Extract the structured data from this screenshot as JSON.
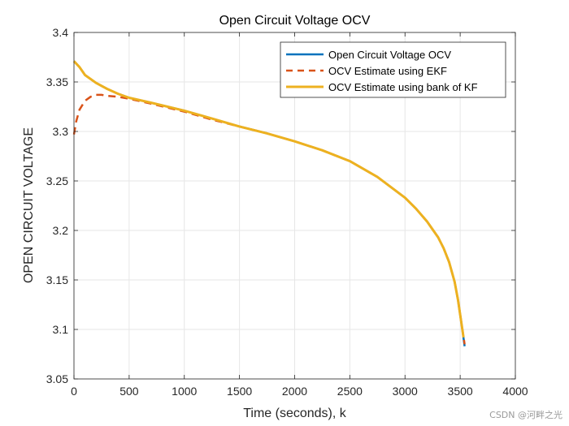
{
  "chart_data": {
    "type": "line",
    "title": "Open Circuit Voltage OCV",
    "xlabel": "Time (seconds), k",
    "ylabel": "OPEN CIRCUIT VOLTAGE",
    "xlim": [
      0,
      4000
    ],
    "ylim": [
      3.05,
      3.4
    ],
    "xticks": [
      0,
      500,
      1000,
      1500,
      2000,
      2500,
      3000,
      3500,
      4000
    ],
    "yticks": [
      3.05,
      3.1,
      3.15,
      3.2,
      3.25,
      3.3,
      3.35,
      3.4
    ],
    "ytick_labels": [
      "3.05",
      "3.1",
      "3.15",
      "3.2",
      "3.25",
      "3.3",
      "3.35",
      "3.4"
    ],
    "grid": true,
    "legend_position": "top-right",
    "series": [
      {
        "name": "Open Circuit Voltage OCV",
        "color": "#0072BD",
        "style": "solid",
        "x": [
          0,
          50,
          100,
          200,
          300,
          400,
          500,
          700,
          1000,
          1250,
          1500,
          1750,
          2000,
          2250,
          2500,
          2750,
          3000,
          3100,
          3200,
          3300,
          3350,
          3400,
          3450,
          3480,
          3500,
          3520,
          3540
        ],
        "y": [
          3.371,
          3.365,
          3.357,
          3.349,
          3.343,
          3.338,
          3.334,
          3.329,
          3.321,
          3.313,
          3.305,
          3.298,
          3.29,
          3.281,
          3.27,
          3.254,
          3.233,
          3.222,
          3.209,
          3.193,
          3.182,
          3.168,
          3.148,
          3.13,
          3.115,
          3.1,
          3.083
        ]
      },
      {
        "name": "OCV Estimate using EKF",
        "color": "#D95319",
        "style": "dashed",
        "x": [
          0,
          20,
          50,
          100,
          150,
          200,
          250,
          300,
          400,
          500,
          700,
          1000,
          1250,
          1500,
          1750,
          2000,
          2250,
          2500,
          2750,
          3000,
          3100,
          3200,
          3300,
          3350,
          3400,
          3450,
          3480,
          3500,
          3520,
          3540
        ],
        "y": [
          3.297,
          3.31,
          3.322,
          3.331,
          3.335,
          3.337,
          3.337,
          3.336,
          3.335,
          3.333,
          3.328,
          3.32,
          3.312,
          3.305,
          3.298,
          3.29,
          3.281,
          3.27,
          3.254,
          3.233,
          3.222,
          3.209,
          3.193,
          3.182,
          3.168,
          3.148,
          3.13,
          3.115,
          3.1,
          3.085
        ]
      },
      {
        "name": "OCV Estimate using bank of KF",
        "color": "#EDB120",
        "style": "solid",
        "x": [
          0,
          50,
          100,
          200,
          300,
          400,
          500,
          700,
          1000,
          1250,
          1500,
          1750,
          2000,
          2250,
          2500,
          2750,
          3000,
          3100,
          3200,
          3300,
          3350,
          3400,
          3450,
          3480,
          3500,
          3520,
          3530
        ],
        "y": [
          3.371,
          3.365,
          3.357,
          3.349,
          3.343,
          3.338,
          3.334,
          3.329,
          3.321,
          3.313,
          3.305,
          3.298,
          3.29,
          3.281,
          3.27,
          3.254,
          3.233,
          3.222,
          3.209,
          3.193,
          3.182,
          3.168,
          3.148,
          3.13,
          3.115,
          3.1,
          3.092
        ]
      }
    ]
  },
  "watermark": "CSDN @河畔之光"
}
